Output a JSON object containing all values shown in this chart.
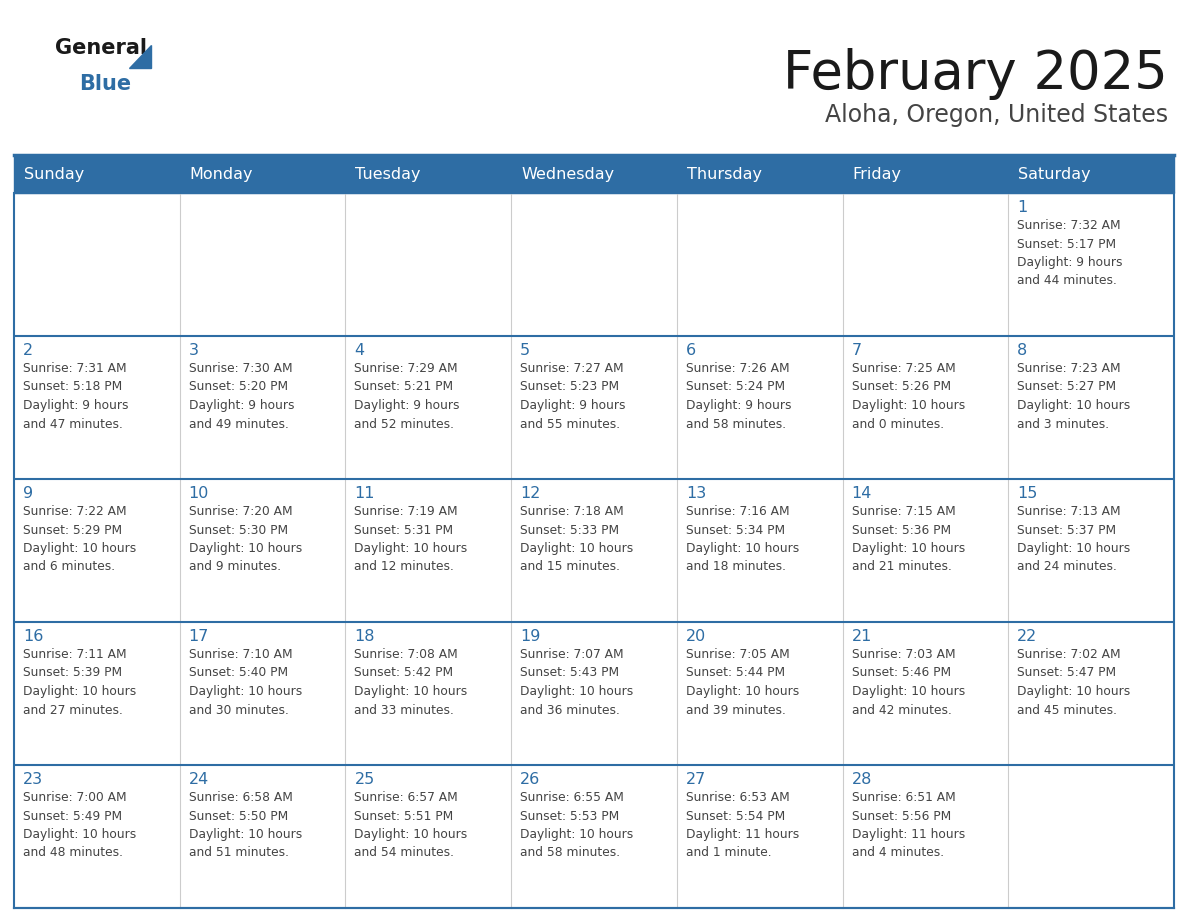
{
  "title": "February 2025",
  "subtitle": "Aloha, Oregon, United States",
  "header_color": "#2E6DA4",
  "header_text_color": "#FFFFFF",
  "cell_bg_color": "#FFFFFF",
  "cell_alt_bg_color": "#F5F5F5",
  "day_number_color": "#2E6DA4",
  "text_color": "#444444",
  "line_color": "#2E6DA4",
  "border_color": "#CCCCCC",
  "days_of_week": [
    "Sunday",
    "Monday",
    "Tuesday",
    "Wednesday",
    "Thursday",
    "Friday",
    "Saturday"
  ],
  "weeks": [
    [
      {
        "day": "",
        "info": ""
      },
      {
        "day": "",
        "info": ""
      },
      {
        "day": "",
        "info": ""
      },
      {
        "day": "",
        "info": ""
      },
      {
        "day": "",
        "info": ""
      },
      {
        "day": "",
        "info": ""
      },
      {
        "day": "1",
        "info": "Sunrise: 7:32 AM\nSunset: 5:17 PM\nDaylight: 9 hours\nand 44 minutes."
      }
    ],
    [
      {
        "day": "2",
        "info": "Sunrise: 7:31 AM\nSunset: 5:18 PM\nDaylight: 9 hours\nand 47 minutes."
      },
      {
        "day": "3",
        "info": "Sunrise: 7:30 AM\nSunset: 5:20 PM\nDaylight: 9 hours\nand 49 minutes."
      },
      {
        "day": "4",
        "info": "Sunrise: 7:29 AM\nSunset: 5:21 PM\nDaylight: 9 hours\nand 52 minutes."
      },
      {
        "day": "5",
        "info": "Sunrise: 7:27 AM\nSunset: 5:23 PM\nDaylight: 9 hours\nand 55 minutes."
      },
      {
        "day": "6",
        "info": "Sunrise: 7:26 AM\nSunset: 5:24 PM\nDaylight: 9 hours\nand 58 minutes."
      },
      {
        "day": "7",
        "info": "Sunrise: 7:25 AM\nSunset: 5:26 PM\nDaylight: 10 hours\nand 0 minutes."
      },
      {
        "day": "8",
        "info": "Sunrise: 7:23 AM\nSunset: 5:27 PM\nDaylight: 10 hours\nand 3 minutes."
      }
    ],
    [
      {
        "day": "9",
        "info": "Sunrise: 7:22 AM\nSunset: 5:29 PM\nDaylight: 10 hours\nand 6 minutes."
      },
      {
        "day": "10",
        "info": "Sunrise: 7:20 AM\nSunset: 5:30 PM\nDaylight: 10 hours\nand 9 minutes."
      },
      {
        "day": "11",
        "info": "Sunrise: 7:19 AM\nSunset: 5:31 PM\nDaylight: 10 hours\nand 12 minutes."
      },
      {
        "day": "12",
        "info": "Sunrise: 7:18 AM\nSunset: 5:33 PM\nDaylight: 10 hours\nand 15 minutes."
      },
      {
        "day": "13",
        "info": "Sunrise: 7:16 AM\nSunset: 5:34 PM\nDaylight: 10 hours\nand 18 minutes."
      },
      {
        "day": "14",
        "info": "Sunrise: 7:15 AM\nSunset: 5:36 PM\nDaylight: 10 hours\nand 21 minutes."
      },
      {
        "day": "15",
        "info": "Sunrise: 7:13 AM\nSunset: 5:37 PM\nDaylight: 10 hours\nand 24 minutes."
      }
    ],
    [
      {
        "day": "16",
        "info": "Sunrise: 7:11 AM\nSunset: 5:39 PM\nDaylight: 10 hours\nand 27 minutes."
      },
      {
        "day": "17",
        "info": "Sunrise: 7:10 AM\nSunset: 5:40 PM\nDaylight: 10 hours\nand 30 minutes."
      },
      {
        "day": "18",
        "info": "Sunrise: 7:08 AM\nSunset: 5:42 PM\nDaylight: 10 hours\nand 33 minutes."
      },
      {
        "day": "19",
        "info": "Sunrise: 7:07 AM\nSunset: 5:43 PM\nDaylight: 10 hours\nand 36 minutes."
      },
      {
        "day": "20",
        "info": "Sunrise: 7:05 AM\nSunset: 5:44 PM\nDaylight: 10 hours\nand 39 minutes."
      },
      {
        "day": "21",
        "info": "Sunrise: 7:03 AM\nSunset: 5:46 PM\nDaylight: 10 hours\nand 42 minutes."
      },
      {
        "day": "22",
        "info": "Sunrise: 7:02 AM\nSunset: 5:47 PM\nDaylight: 10 hours\nand 45 minutes."
      }
    ],
    [
      {
        "day": "23",
        "info": "Sunrise: 7:00 AM\nSunset: 5:49 PM\nDaylight: 10 hours\nand 48 minutes."
      },
      {
        "day": "24",
        "info": "Sunrise: 6:58 AM\nSunset: 5:50 PM\nDaylight: 10 hours\nand 51 minutes."
      },
      {
        "day": "25",
        "info": "Sunrise: 6:57 AM\nSunset: 5:51 PM\nDaylight: 10 hours\nand 54 minutes."
      },
      {
        "day": "26",
        "info": "Sunrise: 6:55 AM\nSunset: 5:53 PM\nDaylight: 10 hours\nand 58 minutes."
      },
      {
        "day": "27",
        "info": "Sunrise: 6:53 AM\nSunset: 5:54 PM\nDaylight: 11 hours\nand 1 minute."
      },
      {
        "day": "28",
        "info": "Sunrise: 6:51 AM\nSunset: 5:56 PM\nDaylight: 11 hours\nand 4 minutes."
      },
      {
        "day": "",
        "info": ""
      }
    ]
  ]
}
